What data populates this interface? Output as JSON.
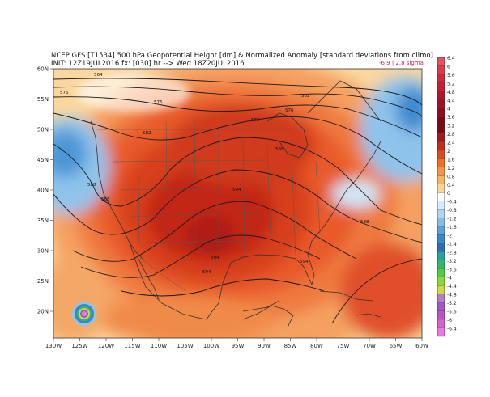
{
  "header": {
    "line1": "NCEP GFS [T1534] 500 hPa Geopotential Height [dm] & Normalized Anomaly [standard deviations from climo]",
    "line2": "INIT: 12Z19JUL2016 fx: [030] hr --> Wed 18Z20JUL2016",
    "range": "-6.9 | 2.8 sigma"
  },
  "axes": {
    "lon_labels": [
      "130W",
      "125W",
      "120W",
      "115W",
      "110W",
      "105W",
      "100W",
      "95W",
      "90W",
      "85W",
      "80W",
      "75W",
      "70W",
      "65W",
      "60W"
    ],
    "lat_labels": [
      "60N",
      "55N",
      "50N",
      "45N",
      "40N",
      "35N",
      "30N",
      "25N",
      "20N"
    ]
  },
  "colorbar": {
    "labels": [
      "6.4",
      "6",
      "5.6",
      "5.2",
      "4.8",
      "4.4",
      "4",
      "3.6",
      "3.2",
      "2.8",
      "2.4",
      "2",
      "1.6",
      "1.2",
      "0.8",
      "0.4",
      "0",
      "-0.4",
      "-0.8",
      "-1.2",
      "-1.6",
      "-2",
      "-2.4",
      "-2.8",
      "-3.2",
      "-3.6",
      "-4",
      "-4.4",
      "-4.8",
      "-5.2",
      "-5.6",
      "-6",
      "-6.4"
    ],
    "colors": [
      "#e8505a",
      "#dd3b47",
      "#d0283a",
      "#c21f30",
      "#b01828",
      "#a01222",
      "#8e0c1c",
      "#7c0818",
      "#7a0a14",
      "#a31a17",
      "#c42e17",
      "#dd4c1a",
      "#ee6e26",
      "#f59540",
      "#f8b665",
      "#fbd596",
      "#ffffff",
      "#d6ecfa",
      "#aed6f3",
      "#83bde8",
      "#5aa3dc",
      "#3a86ca",
      "#2c70b4",
      "#24a0a0",
      "#2fb86e",
      "#52cc3c",
      "#8cd63a",
      "#c6dc40",
      "#b878d0",
      "#a057c4",
      "#c34fc6",
      "#d860d0",
      "#ee78e2"
    ]
  },
  "contours": {
    "labels": [
      "564",
      "576",
      "576",
      "582",
      "582",
      "588",
      "588",
      "594",
      "594",
      "594",
      "594",
      "576",
      "582",
      "588",
      "588"
    ]
  }
}
